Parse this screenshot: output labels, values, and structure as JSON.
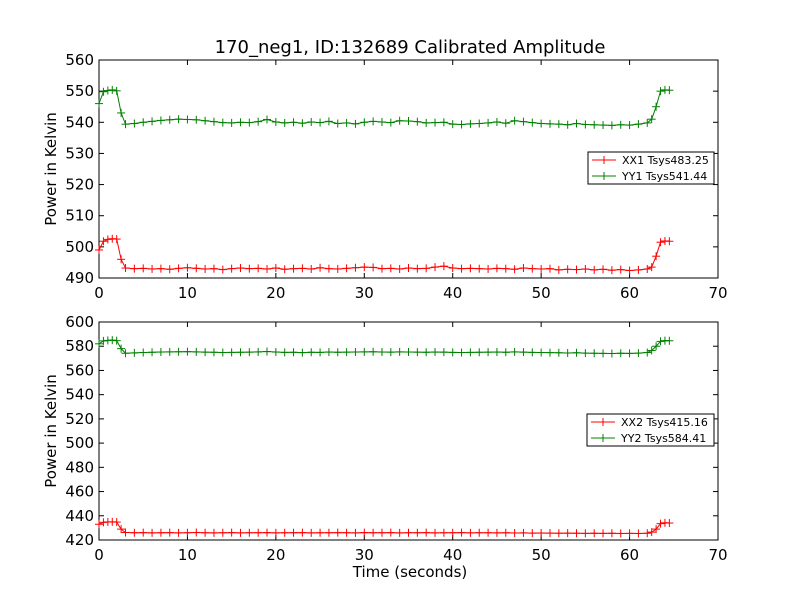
{
  "chart_data": [
    {
      "type": "line",
      "title": "170_neg1, ID:132689 Calibrated Amplitude",
      "xlabel": "",
      "ylabel": "Power in Kelvin",
      "xlim": [
        0,
        70
      ],
      "ylim": [
        490,
        560
      ],
      "xticks": [
        0,
        10,
        20,
        30,
        40,
        50,
        60,
        70
      ],
      "yticks": [
        490,
        500,
        510,
        520,
        530,
        540,
        550,
        560
      ],
      "grid": false,
      "legend_position": "right",
      "series": [
        {
          "name": "XX1 Tsys483.25",
          "color": "#ff0000",
          "marker": "plus",
          "levels": {
            "start": 501.5,
            "end": 501.8,
            "plateau": 493.0
          },
          "x": [
            0,
            0.5,
            1,
            1.5,
            2,
            2.5,
            3,
            4,
            5,
            6,
            7,
            8,
            9,
            10,
            11,
            12,
            13,
            14,
            15,
            16,
            17,
            18,
            19,
            20,
            21,
            22,
            23,
            24,
            25,
            26,
            27,
            28,
            29,
            30,
            31,
            32,
            33,
            34,
            35,
            36,
            37,
            38,
            39,
            40,
            41,
            42,
            43,
            44,
            45,
            46,
            47,
            48,
            49,
            50,
            51,
            52,
            53,
            54,
            55,
            56,
            57,
            58,
            59,
            60,
            61,
            62,
            62.5,
            63,
            63.5,
            64,
            64.5
          ],
          "y": [
            499,
            501.8,
            502.4,
            502.6,
            502.5,
            496,
            493.2,
            493.0,
            493.1,
            492.9,
            493.0,
            492.8,
            493.1,
            493.3,
            493.1,
            492.9,
            493.0,
            492.7,
            493.0,
            493.2,
            493.0,
            493.1,
            492.9,
            493.2,
            492.8,
            493.0,
            493.1,
            492.9,
            493.3,
            493.0,
            492.9,
            493.1,
            493.3,
            493.5,
            493.4,
            493.0,
            493.1,
            492.9,
            493.2,
            493.0,
            493.1,
            493.5,
            493.8,
            493.2,
            493.0,
            493.1,
            493.0,
            492.9,
            493.1,
            493.0,
            492.8,
            493.2,
            493.0,
            492.9,
            493.0,
            492.6,
            492.8,
            492.7,
            492.9,
            492.6,
            492.8,
            492.5,
            492.7,
            492.4,
            492.6,
            492.9,
            493.5,
            497,
            501.5,
            501.9,
            501.8
          ]
        },
        {
          "name": "YY1 Tsys541.44",
          "color": "#008000",
          "marker": "plus",
          "levels": {
            "start": 550.2,
            "end": 550.3,
            "plateau": 540.0
          },
          "x": [
            0,
            0.5,
            1,
            1.5,
            2,
            2.5,
            3,
            4,
            5,
            6,
            7,
            8,
            9,
            10,
            11,
            12,
            13,
            14,
            15,
            16,
            17,
            18,
            19,
            20,
            21,
            22,
            23,
            24,
            25,
            26,
            27,
            28,
            29,
            30,
            31,
            32,
            33,
            34,
            35,
            36,
            37,
            38,
            39,
            40,
            41,
            42,
            43,
            44,
            45,
            46,
            47,
            48,
            49,
            50,
            51,
            52,
            53,
            54,
            55,
            56,
            57,
            58,
            59,
            60,
            61,
            62,
            62.5,
            63,
            63.5,
            64,
            64.5
          ],
          "y": [
            546,
            549.8,
            550.2,
            550.4,
            550.1,
            543,
            539.4,
            539.6,
            540.0,
            540.3,
            540.6,
            540.8,
            541.0,
            540.9,
            540.8,
            540.5,
            540.2,
            539.9,
            539.8,
            540.0,
            539.9,
            540.2,
            540.9,
            540.1,
            539.8,
            540.0,
            539.7,
            540.1,
            539.9,
            540.3,
            539.6,
            539.8,
            539.5,
            540.0,
            540.3,
            540.1,
            539.9,
            540.5,
            540.4,
            540.2,
            539.8,
            539.9,
            540.0,
            539.4,
            539.3,
            539.5,
            539.6,
            539.8,
            540.1,
            539.7,
            540.5,
            540.2,
            539.9,
            539.6,
            539.5,
            539.4,
            539.2,
            539.6,
            539.3,
            539.2,
            539.1,
            539.0,
            539.2,
            539.1,
            539.4,
            539.8,
            541.0,
            545,
            550.0,
            550.4,
            550.3
          ]
        }
      ]
    },
    {
      "type": "line",
      "title": "",
      "xlabel": "Time (seconds)",
      "ylabel": "Power in Kelvin",
      "xlim": [
        0,
        70
      ],
      "ylim": [
        420,
        600
      ],
      "xticks": [
        0,
        10,
        20,
        30,
        40,
        50,
        60,
        70
      ],
      "yticks": [
        420,
        440,
        460,
        480,
        500,
        520,
        540,
        560,
        580,
        600
      ],
      "grid": false,
      "legend_position": "right",
      "series": [
        {
          "name": "XX2 Tsys415.16",
          "color": "#ff0000",
          "marker": "plus",
          "levels": {
            "start": 434.5,
            "end": 434.0,
            "plateau": 426.0
          },
          "x": [
            0,
            0.5,
            1,
            1.5,
            2,
            2.5,
            3,
            4,
            5,
            6,
            7,
            8,
            9,
            10,
            11,
            12,
            13,
            14,
            15,
            16,
            17,
            18,
            19,
            20,
            21,
            22,
            23,
            24,
            25,
            26,
            27,
            28,
            29,
            30,
            31,
            32,
            33,
            34,
            35,
            36,
            37,
            38,
            39,
            40,
            41,
            42,
            43,
            44,
            45,
            46,
            47,
            48,
            49,
            50,
            51,
            52,
            53,
            54,
            55,
            56,
            57,
            58,
            59,
            60,
            61,
            62,
            62.5,
            63,
            63.5,
            64,
            64.5
          ],
          "y": [
            433,
            434.6,
            434.9,
            435.0,
            434.8,
            429,
            426.2,
            426.0,
            426.1,
            425.9,
            426.0,
            426.1,
            425.9,
            426.0,
            426.2,
            426.0,
            425.9,
            426.0,
            426.1,
            425.9,
            426.0,
            426.0,
            426.1,
            425.9,
            426.0,
            426.0,
            426.1,
            425.9,
            426.0,
            426.0,
            426.1,
            426.0,
            425.9,
            426.1,
            426.0,
            426.0,
            426.1,
            425.9,
            426.0,
            426.0,
            426.1,
            425.9,
            426.0,
            426.0,
            426.1,
            425.9,
            426.0,
            426.0,
            425.9,
            426.0,
            425.8,
            425.9,
            425.7,
            425.8,
            425.7,
            425.6,
            425.7,
            425.6,
            425.5,
            425.6,
            425.5,
            425.6,
            425.4,
            425.5,
            425.4,
            425.6,
            426.5,
            429,
            433.5,
            434.2,
            434.0
          ]
        },
        {
          "name": "YY2 Tsys584.41",
          "color": "#008000",
          "marker": "plus",
          "levels": {
            "start": 584.5,
            "end": 584.5,
            "plateau": 575.0
          },
          "x": [
            0,
            0.5,
            1,
            1.5,
            2,
            2.5,
            3,
            4,
            5,
            6,
            7,
            8,
            9,
            10,
            11,
            12,
            13,
            14,
            15,
            16,
            17,
            18,
            19,
            20,
            21,
            22,
            23,
            24,
            25,
            26,
            27,
            28,
            29,
            30,
            31,
            32,
            33,
            34,
            35,
            36,
            37,
            38,
            39,
            40,
            41,
            42,
            43,
            44,
            45,
            46,
            47,
            48,
            49,
            50,
            51,
            52,
            53,
            54,
            55,
            56,
            57,
            58,
            59,
            60,
            61,
            62,
            62.5,
            63,
            63.5,
            64,
            64.5
          ],
          "y": [
            582,
            584.4,
            584.8,
            585.0,
            584.6,
            578,
            574.2,
            574.5,
            574.8,
            575.0,
            575.2,
            575.3,
            575.4,
            575.5,
            575.3,
            575.1,
            575.0,
            574.8,
            574.9,
            575.0,
            575.1,
            575.3,
            575.6,
            575.2,
            574.9,
            575.0,
            574.7,
            575.0,
            574.9,
            575.2,
            575.0,
            575.1,
            575.2,
            575.3,
            575.4,
            575.2,
            575.1,
            575.3,
            575.2,
            575.1,
            575.0,
            575.2,
            575.1,
            574.9,
            574.8,
            574.9,
            575.0,
            575.1,
            575.2,
            575.0,
            575.3,
            575.1,
            574.9,
            574.8,
            574.7,
            574.6,
            574.4,
            574.6,
            574.3,
            574.2,
            574.1,
            574.0,
            574.2,
            574.1,
            574.3,
            574.8,
            576.5,
            580,
            584.0,
            584.6,
            584.5
          ]
        }
      ]
    }
  ]
}
